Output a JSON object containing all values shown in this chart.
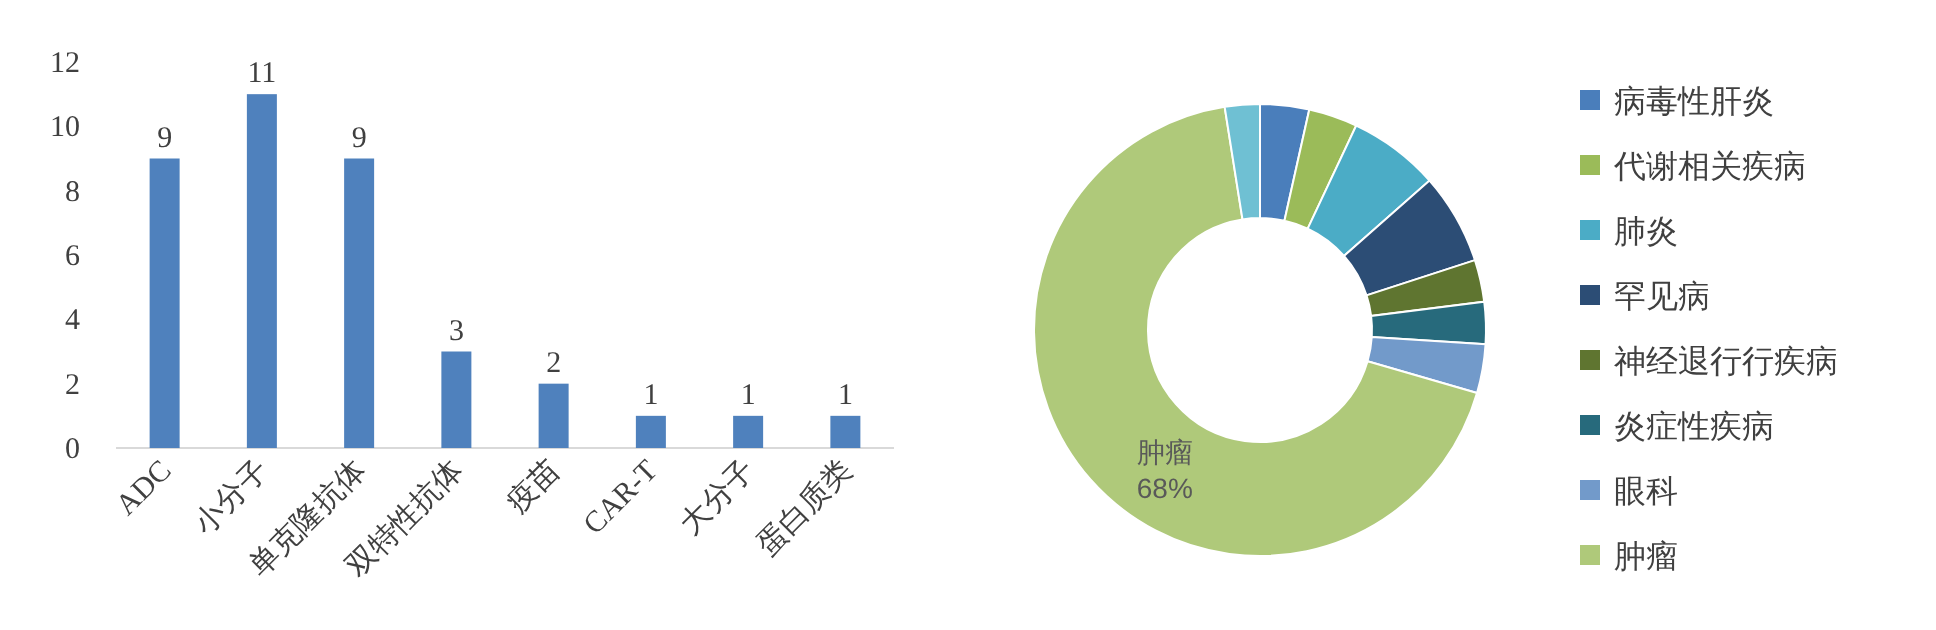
{
  "chart_data": [
    {
      "type": "bar",
      "categories": [
        "ADC",
        "小分子",
        "单克隆抗体",
        "双特性抗体",
        "疫苗",
        "CAR-T",
        "大分子",
        "蛋白质类"
      ],
      "values": [
        9,
        11,
        9,
        3,
        2,
        1,
        1,
        1
      ],
      "color": "#4f81bd",
      "ylim": [
        0,
        12
      ],
      "yticks": [
        0,
        2,
        4,
        6,
        8,
        10,
        12
      ],
      "data_labels": true,
      "grid": false
    },
    {
      "type": "donut",
      "categories": [
        "病毒性肝炎",
        "代谢相关疾病",
        "肺炎",
        "罕见病",
        "神经退行行疾病",
        "炎症性疾病",
        "眼科",
        "肿瘤",
        null
      ],
      "values": [
        3.5,
        3.5,
        6.5,
        6.5,
        3,
        3,
        3.5,
        68,
        2.5
      ],
      "colors": [
        "#4a7ebb",
        "#9bbb59",
        "#4bacc6",
        "#2c4d75",
        "#5f7530",
        "#276a7c",
        "#729aca",
        "#afc97a",
        "#6fc0d3"
      ],
      "value_labels": [
        null,
        null,
        null,
        null,
        null,
        null,
        null,
        "68%",
        null
      ],
      "legend": "right"
    }
  ]
}
